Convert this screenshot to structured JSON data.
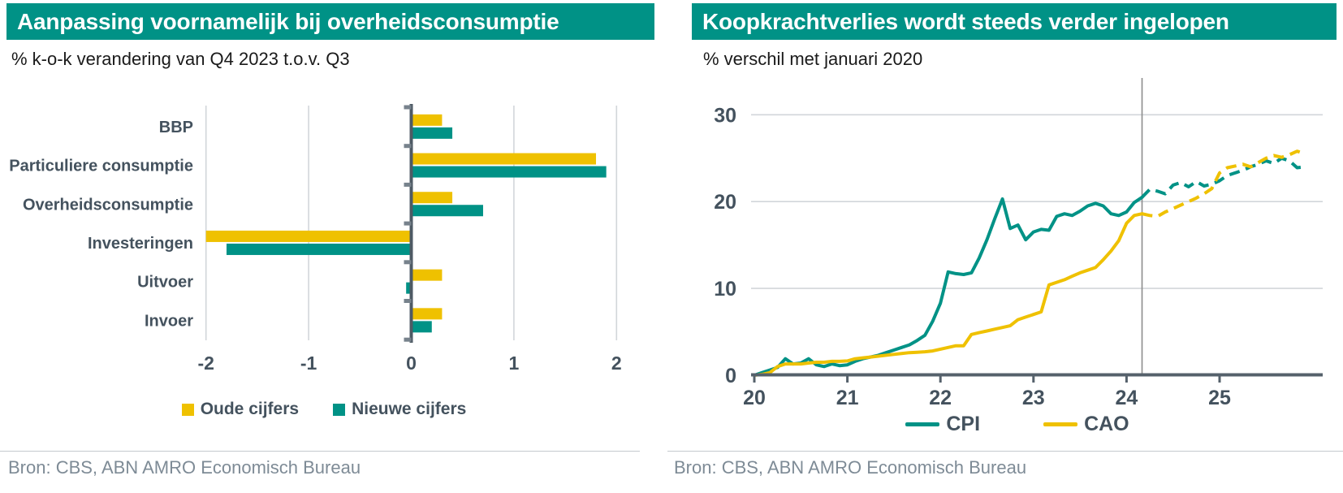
{
  "colors": {
    "teal": "#009286",
    "yellow": "#EFC100",
    "text": "#44525E",
    "axis": "#4E5A64",
    "grid": "#D2D6DA",
    "forecast_line": "#8C8C8C",
    "title_bar_bg": "#009286",
    "title_text": "#FFFFFF",
    "source_text": "#7E8B96"
  },
  "left_panel": {
    "title": "Aanpassing voornamelijk bij overheidsconsumptie",
    "subtitle": "% k-o-k verandering van Q4 2023 t.o.v. Q3",
    "source": "Bron: CBS, ABN AMRO Economisch Bureau"
  },
  "right_panel": {
    "title": "Koopkrachtverlies wordt steeds verder ingelopen",
    "subtitle": "% verschil met januari 2020",
    "source": "Bron: CBS, ABN AMRO Economisch Bureau"
  },
  "chart_data": [
    {
      "type": "bar",
      "orientation": "horizontal",
      "title": "Aanpassing voornamelijk bij overheidsconsumptie",
      "unit": "% k-o-k verandering van Q4 2023 t.o.v. Q3",
      "categories": [
        "BBP",
        "Particuliere consumptie",
        "Overheidsconsumptie",
        "Investeringen",
        "Uitvoer",
        "Invoer"
      ],
      "series": [
        {
          "name": "Oude cijfers",
          "color": "yellow",
          "values": [
            0.3,
            1.8,
            0.4,
            -2.0,
            0.3,
            0.3
          ]
        },
        {
          "name": "Nieuwe cijfers",
          "color": "teal",
          "values": [
            0.4,
            1.9,
            0.7,
            -1.8,
            -0.05,
            0.2
          ]
        }
      ],
      "xlim": [
        -2,
        2
      ],
      "xticks": [
        -2,
        -1,
        0,
        1,
        2
      ],
      "grid": "vertical",
      "legend_position": "bottom"
    },
    {
      "type": "line",
      "title": "Koopkrachtverlies wordt steeds verder ingelopen",
      "unit": "% verschil met januari 2020",
      "x_start": 20,
      "x_step": 0.0833333,
      "xticks": [
        20,
        21,
        22,
        23,
        24,
        25
      ],
      "yticks": [
        0,
        10,
        20,
        30
      ],
      "ylim": [
        0,
        33
      ],
      "forecast_boundary_x": 24.1667,
      "forecast_style": "dashed",
      "grid": "horizontal",
      "legend_position": "bottom",
      "series": [
        {
          "name": "CPI",
          "color": "teal",
          "values": [
            0,
            0.3,
            0.6,
            0.9,
            1.9,
            1.3,
            1.4,
            1.9,
            1.2,
            1.0,
            1.3,
            1.1,
            1.2,
            1.6,
            1.9,
            2.1,
            2.3,
            2.6,
            2.9,
            3.2,
            3.5,
            4.0,
            4.6,
            6.2,
            8.3,
            11.9,
            11.7,
            11.6,
            11.8,
            13.5,
            15.6,
            18.0,
            20.3,
            16.9,
            17.3,
            15.6,
            16.5,
            16.8,
            16.7,
            18.3,
            18.6,
            18.4,
            18.9,
            19.5,
            19.8,
            19.5,
            18.6,
            18.4,
            18.8,
            19.9,
            20.5,
            21.4,
            21.2,
            20.9,
            21.9,
            22.2,
            21.7,
            22.3,
            21.8,
            22.0,
            22.4,
            23.0,
            23.3,
            23.6,
            24.0,
            24.3,
            24.7,
            24.4,
            25.0,
            24.7,
            23.9,
            24.0
          ]
        },
        {
          "name": "CAO",
          "color": "yellow",
          "values": [
            0,
            0.1,
            0.3,
            1.0,
            1.3,
            1.3,
            1.3,
            1.4,
            1.5,
            1.5,
            1.6,
            1.6,
            1.65,
            1.9,
            2.0,
            2.1,
            2.2,
            2.3,
            2.4,
            2.5,
            2.6,
            2.65,
            2.7,
            2.8,
            3.0,
            3.2,
            3.4,
            3.4,
            4.7,
            4.9,
            5.1,
            5.3,
            5.5,
            5.7,
            6.4,
            6.7,
            7.0,
            7.3,
            10.4,
            10.7,
            11.0,
            11.4,
            11.8,
            12.1,
            12.4,
            13.3,
            14.3,
            15.5,
            17.5,
            18.4,
            18.6,
            18.4,
            18.3,
            18.8,
            19.2,
            19.6,
            20.0,
            20.4,
            20.9,
            21.5,
            23.3,
            23.9,
            24.1,
            24.3,
            24.0,
            24.5,
            25.0,
            25.3,
            25.1,
            25.4,
            25.8,
            25.5
          ]
        }
      ]
    }
  ]
}
